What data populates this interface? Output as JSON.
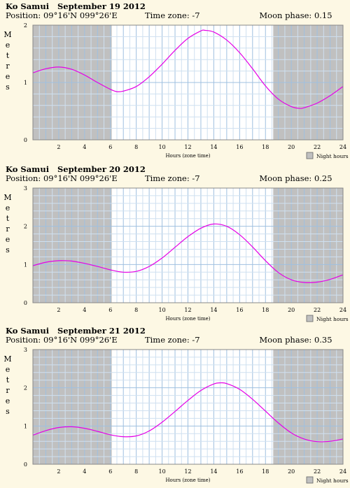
{
  "chart_data": [
    {
      "type": "line",
      "location": "Ko Samui",
      "date": "September 19 2012",
      "position_label": "Position:",
      "position": "09°16'N 099°26'E",
      "timezone_label": "Time zone:",
      "timezone": "-7",
      "moon_label": "Moon phase:",
      "moon_phase": "0.15",
      "xlabel": "Hours (zone time)",
      "ylabel": "Metres",
      "legend": "Night hours",
      "xlim": [
        0,
        24
      ],
      "ylim": [
        0,
        2
      ],
      "xticks": [
        "2",
        "4",
        "6",
        "8",
        "10",
        "12",
        "14",
        "16",
        "18",
        "20",
        "22",
        "24"
      ],
      "yticks": [
        "0",
        "1",
        "2"
      ],
      "night": [
        [
          0,
          6.1
        ],
        [
          18.6,
          24
        ]
      ],
      "x": [
        0,
        1,
        2,
        3,
        4,
        5,
        6,
        6.5,
        7,
        8,
        9,
        10,
        11,
        12,
        13,
        13.3,
        14,
        15,
        16,
        17,
        18,
        19,
        20,
        20.6,
        21,
        22,
        23,
        24
      ],
      "values": [
        1.17,
        1.24,
        1.27,
        1.23,
        1.13,
        1.0,
        0.88,
        0.84,
        0.85,
        0.93,
        1.1,
        1.32,
        1.56,
        1.77,
        1.9,
        1.91,
        1.88,
        1.74,
        1.52,
        1.24,
        0.94,
        0.71,
        0.58,
        0.55,
        0.56,
        0.64,
        0.77,
        0.93
      ]
    },
    {
      "type": "line",
      "location": "Ko Samui",
      "date": "September 20 2012",
      "position_label": "Position:",
      "position": "09°16'N 099°26'E",
      "timezone_label": "Time zone:",
      "timezone": "-7",
      "moon_label": "Moon phase:",
      "moon_phase": "0.25",
      "xlabel": "Hours (zone time)",
      "ylabel": "Metres",
      "legend": "Night hours",
      "xlim": [
        0,
        24
      ],
      "ylim": [
        0,
        3
      ],
      "xticks": [
        "2",
        "4",
        "6",
        "8",
        "10",
        "12",
        "14",
        "16",
        "18",
        "20",
        "22",
        "24"
      ],
      "yticks": [
        "0",
        "1",
        "2",
        "3"
      ],
      "night": [
        [
          0,
          6.1
        ],
        [
          18.6,
          24
        ]
      ],
      "x": [
        0,
        1,
        2,
        2.5,
        3,
        4,
        5,
        6,
        7,
        8,
        9,
        10,
        11,
        12,
        13,
        14,
        15,
        16,
        17,
        18,
        19,
        20,
        21,
        22,
        23,
        24
      ],
      "values": [
        0.97,
        1.06,
        1.1,
        1.1,
        1.09,
        1.03,
        0.95,
        0.86,
        0.8,
        0.82,
        0.95,
        1.17,
        1.45,
        1.73,
        1.95,
        2.06,
        2.0,
        1.78,
        1.46,
        1.1,
        0.79,
        0.6,
        0.53,
        0.54,
        0.61,
        0.73
      ]
    },
    {
      "type": "line",
      "location": "Ko Samui",
      "date": "September 21 2012",
      "position_label": "Position:",
      "position": "09°16'N 099°26'E",
      "timezone_label": "Time zone:",
      "timezone": "-7",
      "moon_label": "Moon phase:",
      "moon_phase": "0.35",
      "xlabel": "Hours (zone time)",
      "ylabel": "Metres",
      "legend": "Night hours",
      "xlim": [
        0,
        24
      ],
      "ylim": [
        0,
        3
      ],
      "xticks": [
        "2",
        "4",
        "6",
        "8",
        "10",
        "12",
        "14",
        "16",
        "18",
        "20",
        "22",
        "24"
      ],
      "yticks": [
        "0",
        "1",
        "2",
        "3"
      ],
      "night": [
        [
          0,
          6.1
        ],
        [
          18.6,
          24
        ]
      ],
      "x": [
        0,
        1,
        2,
        3,
        4,
        5,
        6,
        7,
        8,
        9,
        10,
        11,
        12,
        13,
        14,
        14.5,
        15,
        16,
        17,
        18,
        19,
        20,
        21,
        22,
        23,
        24
      ],
      "values": [
        0.76,
        0.88,
        0.96,
        0.98,
        0.94,
        0.86,
        0.77,
        0.72,
        0.74,
        0.87,
        1.1,
        1.38,
        1.67,
        1.93,
        2.1,
        2.13,
        2.11,
        1.96,
        1.7,
        1.39,
        1.08,
        0.82,
        0.66,
        0.59,
        0.6,
        0.66
      ]
    }
  ]
}
